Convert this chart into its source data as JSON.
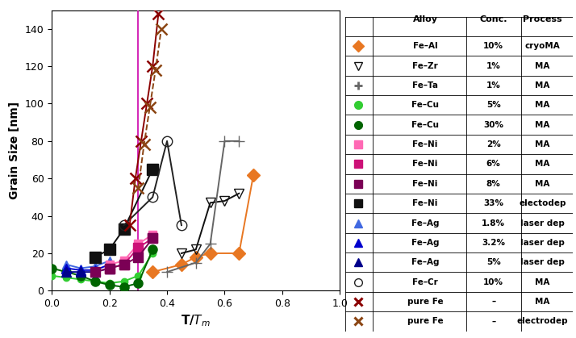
{
  "ylabel": "Grain Size [nm]",
  "xlim": [
    0.0,
    1.0
  ],
  "ylim": [
    0,
    150
  ],
  "yticks": [
    0,
    20,
    40,
    60,
    80,
    100,
    120,
    140
  ],
  "xticks": [
    0.0,
    0.2,
    0.4,
    0.6,
    0.8,
    1.0
  ],
  "fe_al": {
    "x": [
      0.35,
      0.45,
      0.5,
      0.55,
      0.65,
      0.7
    ],
    "y": [
      10,
      14,
      18,
      20,
      20,
      62
    ],
    "color": "#E87722",
    "marker": "D",
    "ms": 8,
    "ls": "-",
    "fc": "fill"
  },
  "fe_zr": {
    "x": [
      0.45,
      0.5,
      0.55,
      0.6,
      0.65
    ],
    "y": [
      20,
      22,
      47,
      48,
      52
    ],
    "color": "#111111",
    "marker": "v",
    "ms": 9,
    "ls": "-",
    "fc": "none"
  },
  "fe_ta": {
    "x": [
      0.4,
      0.5,
      0.55,
      0.6,
      0.65
    ],
    "y": [
      10,
      15,
      25,
      80,
      80
    ],
    "color": "#666666",
    "marker": "+",
    "ms": 10,
    "ls": "-",
    "fc": "fill"
  },
  "fe_cu5": {
    "x": [
      0.0,
      0.05,
      0.1,
      0.15,
      0.2,
      0.25,
      0.3,
      0.35
    ],
    "y": [
      8,
      7,
      6,
      5,
      4,
      5,
      8,
      20
    ],
    "color": "#32CD32",
    "marker": "o",
    "ms": 6,
    "ls": "-",
    "fc": "fill"
  },
  "fe_cu30": {
    "x": [
      0.0,
      0.05,
      0.1,
      0.15,
      0.2,
      0.25,
      0.3,
      0.35
    ],
    "y": [
      12,
      10,
      8,
      5,
      3,
      2,
      4,
      22
    ],
    "color": "#006400",
    "marker": "o",
    "ms": 8,
    "ls": "-",
    "fc": "fill"
  },
  "fe_ni2": {
    "x": [
      0.2,
      0.25,
      0.3,
      0.35
    ],
    "y": [
      14,
      16,
      25,
      30
    ],
    "color": "#FF69B4",
    "marker": "s",
    "ms": 7,
    "ls": "-",
    "fc": "fill"
  },
  "fe_ni6": {
    "x": [
      0.2,
      0.25,
      0.3,
      0.35
    ],
    "y": [
      12,
      14,
      23,
      28
    ],
    "color": "#CC1177",
    "marker": "s",
    "ms": 8,
    "ls": "-",
    "fc": "fill"
  },
  "fe_ni8": {
    "x": [
      0.15,
      0.2,
      0.25,
      0.3,
      0.35
    ],
    "y": [
      10,
      12,
      14,
      18,
      28
    ],
    "color": "#7B0055",
    "marker": "s",
    "ms": 8,
    "ls": "-",
    "fc": "fill"
  },
  "fe_ni33": {
    "x": [
      0.15,
      0.2,
      0.25,
      0.35
    ],
    "y": [
      18,
      22,
      33,
      65
    ],
    "color": "#111111",
    "marker": "s",
    "ms": 10,
    "ls": "-",
    "fc": "fill"
  },
  "fe_ag18": {
    "x": [
      0.05,
      0.1,
      0.15,
      0.2
    ],
    "y": [
      14,
      12,
      13,
      16
    ],
    "color": "#4169E1",
    "marker": "^",
    "ms": 7,
    "ls": "-",
    "fc": "fill"
  },
  "fe_ag32": {
    "x": [
      0.05,
      0.1,
      0.15,
      0.2
    ],
    "y": [
      12,
      11,
      11,
      14
    ],
    "color": "#0000CD",
    "marker": "^",
    "ms": 8,
    "ls": "-",
    "fc": "fill"
  },
  "fe_ag5": {
    "x": [
      0.05,
      0.1,
      0.15,
      0.2
    ],
    "y": [
      10,
      10,
      10,
      12
    ],
    "color": "#00008B",
    "marker": "^",
    "ms": 9,
    "ls": "-",
    "fc": "fill"
  },
  "fe_cr": {
    "x": [
      0.25,
      0.35,
      0.4,
      0.45
    ],
    "y": [
      35,
      50,
      80,
      35
    ],
    "color": "#222222",
    "marker": "o",
    "ms": 9,
    "ls": "-",
    "fc": "none"
  },
  "pfe_ma": {
    "x": [
      0.27,
      0.29,
      0.31,
      0.33,
      0.35,
      0.37
    ],
    "y": [
      35,
      60,
      80,
      100,
      120,
      148
    ],
    "color": "#8B0000",
    "marker": "x",
    "ms": 10,
    "ls": "-",
    "fc": "fill"
  },
  "pfe_ed": {
    "x": [
      0.3,
      0.32,
      0.34,
      0.36,
      0.38
    ],
    "y": [
      55,
      78,
      98,
      118,
      140
    ],
    "color": "#8B4513",
    "marker": "x",
    "ms": 10,
    "ls": "--",
    "fc": "fill"
  },
  "vline_x": 0.3,
  "vline_color": "#CC00AA",
  "legend_entries": [
    {
      "marker": "D",
      "color": "#E87722",
      "fc": "fill",
      "alloy": "Fe–Al",
      "conc": "10%",
      "process": "cryoMA"
    },
    {
      "marker": "v",
      "color": "#111111",
      "fc": "none",
      "alloy": "Fe–Zr",
      "conc": "1%",
      "process": "MA"
    },
    {
      "marker": "+",
      "color": "#666666",
      "fc": "fill",
      "alloy": "Fe–Ta",
      "conc": "1%",
      "process": "MA"
    },
    {
      "marker": "o",
      "color": "#32CD32",
      "fc": "fill",
      "alloy": "Fe–Cu",
      "conc": "5%",
      "process": "MA"
    },
    {
      "marker": "o",
      "color": "#006400",
      "fc": "fill",
      "alloy": "Fe–Cu",
      "conc": "30%",
      "process": "MA"
    },
    {
      "marker": "s",
      "color": "#FF69B4",
      "fc": "fill",
      "alloy": "Fe–Ni",
      "conc": "2%",
      "process": "MA"
    },
    {
      "marker": "s",
      "color": "#CC1177",
      "fc": "fill",
      "alloy": "Fe–Ni",
      "conc": "6%",
      "process": "MA"
    },
    {
      "marker": "s",
      "color": "#7B0055",
      "fc": "fill",
      "alloy": "Fe–Ni",
      "conc": "8%",
      "process": "MA"
    },
    {
      "marker": "s",
      "color": "#111111",
      "fc": "fill",
      "alloy": "Fe–Ni",
      "conc": "33%",
      "process": "electodep"
    },
    {
      "marker": "^",
      "color": "#4169E1",
      "fc": "fill",
      "alloy": "Fe–Ag",
      "conc": "1.8%",
      "process": "laser dep"
    },
    {
      "marker": "^",
      "color": "#0000CD",
      "fc": "fill",
      "alloy": "Fe–Ag",
      "conc": "3.2%",
      "process": "laser dep"
    },
    {
      "marker": "^",
      "color": "#00008B",
      "fc": "fill",
      "alloy": "Fe–Ag",
      "conc": "5%",
      "process": "laser dep"
    },
    {
      "marker": "o",
      "color": "#222222",
      "fc": "none",
      "alloy": "Fe–Cr",
      "conc": "10%",
      "process": "MA"
    },
    {
      "marker": "x",
      "color": "#8B0000",
      "fc": "fill",
      "alloy": "pure Fe",
      "conc": "–",
      "process": "MA"
    },
    {
      "marker": "x",
      "color": "#8B4513",
      "fc": "fill",
      "alloy": "pure Fe",
      "conc": "–",
      "process": "electrodep"
    }
  ]
}
